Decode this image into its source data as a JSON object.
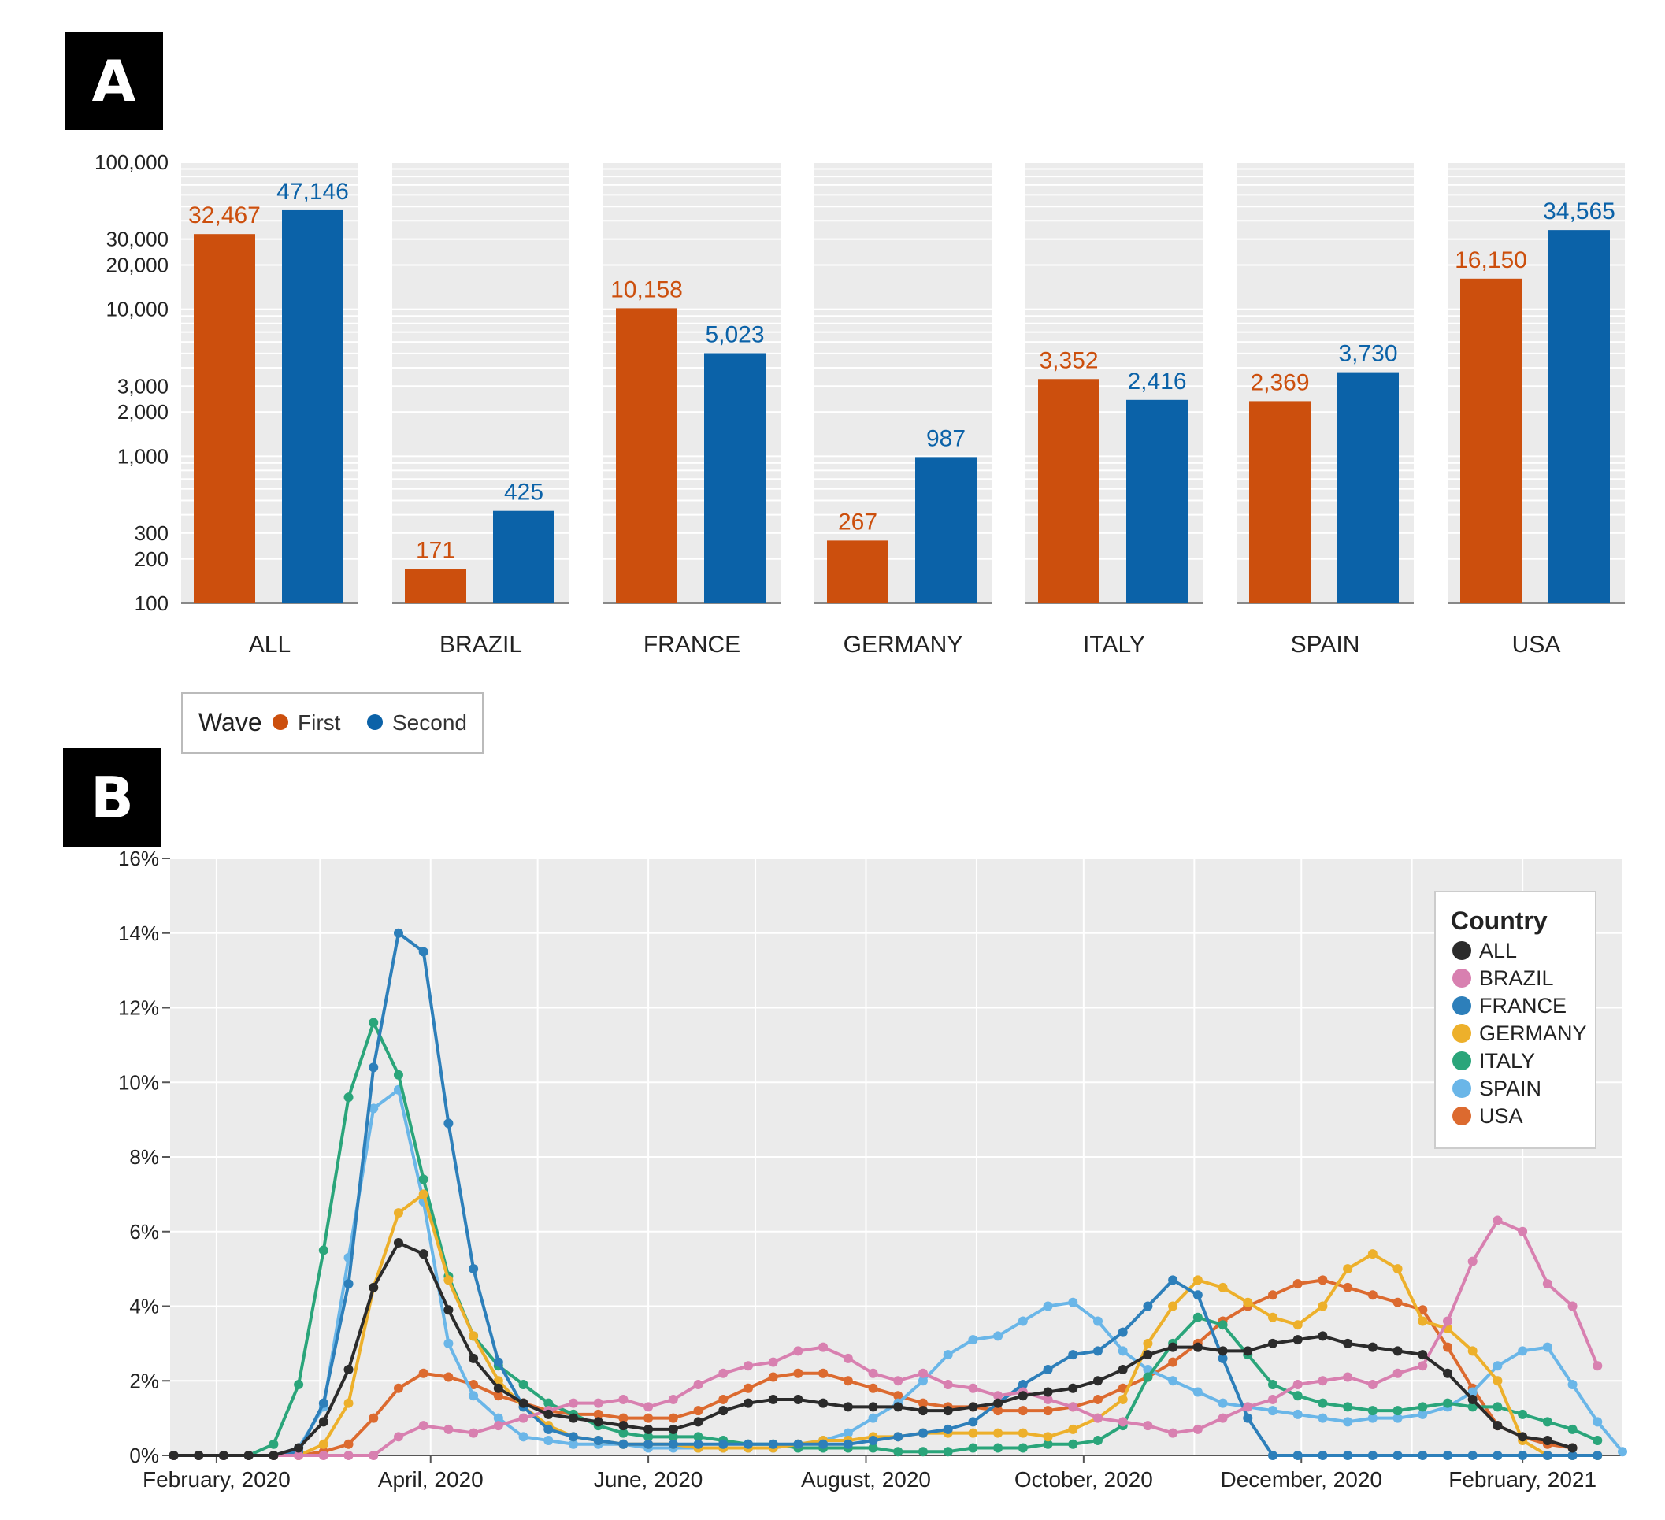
{
  "panels": {
    "a_label": "A",
    "b_label": "B"
  },
  "chart_data": [
    {
      "type": "bar",
      "panel": "A",
      "y_scale": "log",
      "ylim": [
        100,
        100000
      ],
      "yticks": [
        100,
        200,
        300,
        1000,
        2000,
        3000,
        10000,
        20000,
        30000,
        100000
      ],
      "ytick_labels": [
        "100",
        "200",
        "300",
        "1,000",
        "2,000",
        "3,000",
        "10,000",
        "20,000",
        "30,000",
        "100,000"
      ],
      "categories": [
        "ALL",
        "BRAZIL",
        "FRANCE",
        "GERMANY",
        "ITALY",
        "SPAIN",
        "USA"
      ],
      "series": [
        {
          "name": "First",
          "color": "#cc4f0d",
          "values": [
            32467,
            171,
            10158,
            267,
            3352,
            2369,
            16150
          ],
          "labels": [
            "32,467",
            "171",
            "10,158",
            "267",
            "3,352",
            "2,369",
            "16,150"
          ]
        },
        {
          "name": "Second",
          "color": "#0b62a8",
          "values": [
            47146,
            425,
            5023,
            987,
            2416,
            3730,
            34565
          ],
          "labels": [
            "47,146",
            "425",
            "5,023",
            "987",
            "2,416",
            "3,730",
            "34,565"
          ]
        }
      ],
      "legend": {
        "title": "Wave",
        "position": "bottom-left"
      }
    },
    {
      "type": "line",
      "panel": "B",
      "ylim": [
        0,
        16
      ],
      "yticks": [
        0,
        2,
        4,
        6,
        8,
        10,
        12,
        14,
        16
      ],
      "ytick_labels": [
        "0%",
        "2%",
        "4%",
        "6%",
        "8%",
        "10%",
        "12%",
        "14%",
        "16%"
      ],
      "x_start": "2020-01-20",
      "x_step_days": 7,
      "xlim": [
        "2020-01-19",
        "2021-03-01"
      ],
      "xticks": [
        "2020-02-01",
        "2020-04-01",
        "2020-06-01",
        "2020-08-01",
        "2020-10-01",
        "2020-12-01",
        "2021-02-01"
      ],
      "xtick_labels": [
        "February, 2020",
        "April, 2020",
        "June, 2020",
        "August, 2020",
        "October, 2020",
        "December, 2020",
        "February, 2021"
      ],
      "grid": true,
      "legend": {
        "title": "Country",
        "position": "top-right"
      },
      "series": [
        {
          "name": "ALL",
          "color": "#2b2b2b",
          "values": [
            0,
            0,
            0,
            0,
            0,
            0.2,
            0.9,
            2.3,
            4.5,
            5.7,
            5.4,
            3.9,
            2.6,
            1.8,
            1.4,
            1.1,
            1.0,
            0.9,
            0.8,
            0.7,
            0.7,
            0.9,
            1.2,
            1.4,
            1.5,
            1.5,
            1.4,
            1.3,
            1.3,
            1.3,
            1.2,
            1.2,
            1.3,
            1.4,
            1.6,
            1.7,
            1.8,
            2.0,
            2.3,
            2.7,
            2.9,
            2.9,
            2.8,
            2.8,
            3.0,
            3.1,
            3.2,
            3.0,
            2.9,
            2.8,
            2.7,
            2.2,
            1.5,
            0.8,
            0.5,
            0.4,
            0.2
          ]
        },
        {
          "name": "BRAZIL",
          "color": "#d880b0",
          "values": [
            0,
            0,
            0,
            0,
            0,
            0,
            0,
            0,
            0,
            0.5,
            0.8,
            0.7,
            0.6,
            0.8,
            1.0,
            1.2,
            1.4,
            1.4,
            1.5,
            1.3,
            1.5,
            1.9,
            2.2,
            2.4,
            2.5,
            2.8,
            2.9,
            2.6,
            2.2,
            2.0,
            2.2,
            1.9,
            1.8,
            1.6,
            1.7,
            1.5,
            1.3,
            1.0,
            0.9,
            0.8,
            0.6,
            0.7,
            1.0,
            1.3,
            1.5,
            1.9,
            2.0,
            2.1,
            1.9,
            2.2,
            2.4,
            3.6,
            5.2,
            6.3,
            6.0,
            4.6,
            4.0,
            2.4
          ]
        },
        {
          "name": "FRANCE",
          "color": "#2d7fba",
          "values": [
            0,
            0,
            0,
            0,
            0,
            0.1,
            1.4,
            4.6,
            10.4,
            14.0,
            13.5,
            8.9,
            5.0,
            2.5,
            1.3,
            0.7,
            0.5,
            0.4,
            0.3,
            0.3,
            0.3,
            0.3,
            0.3,
            0.3,
            0.3,
            0.3,
            0.3,
            0.3,
            0.4,
            0.5,
            0.6,
            0.7,
            0.9,
            1.4,
            1.9,
            2.3,
            2.7,
            2.8,
            3.3,
            4.0,
            4.7,
            4.3,
            2.6,
            1.0,
            0,
            0,
            0,
            0,
            0,
            0,
            0,
            0,
            0,
            0,
            0,
            0,
            0,
            0
          ]
        },
        {
          "name": "GERMANY",
          "color": "#edb02b",
          "values": [
            0,
            0,
            0,
            0,
            0,
            0,
            0.3,
            1.4,
            4.5,
            6.5,
            7.0,
            4.7,
            3.2,
            2.0,
            1.3,
            0.8,
            0.5,
            0.4,
            0.3,
            0.3,
            0.3,
            0.2,
            0.2,
            0.2,
            0.2,
            0.3,
            0.4,
            0.4,
            0.5,
            0.5,
            0.6,
            0.6,
            0.6,
            0.6,
            0.6,
            0.5,
            0.7,
            1.0,
            1.5,
            3.0,
            4.0,
            4.7,
            4.5,
            4.1,
            3.7,
            3.5,
            4.0,
            5.0,
            5.4,
            5.0,
            3.6,
            3.4,
            2.8,
            2.0,
            0.4,
            0,
            0,
            0
          ]
        },
        {
          "name": "ITALY",
          "color": "#2aa57a",
          "values": [
            0,
            0,
            0,
            0,
            0.3,
            1.9,
            5.5,
            9.6,
            11.6,
            10.2,
            7.4,
            4.8,
            3.2,
            2.4,
            1.9,
            1.4,
            1.1,
            0.8,
            0.6,
            0.5,
            0.5,
            0.5,
            0.4,
            0.3,
            0.3,
            0.2,
            0.2,
            0.2,
            0.2,
            0.1,
            0.1,
            0.1,
            0.2,
            0.2,
            0.2,
            0.3,
            0.3,
            0.4,
            0.8,
            2.1,
            3.0,
            3.7,
            3.5,
            2.7,
            1.9,
            1.6,
            1.4,
            1.3,
            1.2,
            1.2,
            1.3,
            1.4,
            1.3,
            1.3,
            1.1,
            0.9,
            0.7,
            0.4
          ]
        },
        {
          "name": "SPAIN",
          "color": "#6ab6e8",
          "values": [
            0,
            0,
            0,
            0,
            0,
            0.2,
            1.3,
            5.3,
            9.3,
            9.8,
            6.8,
            3.0,
            1.6,
            1.0,
            0.5,
            0.4,
            0.3,
            0.3,
            0.3,
            0.2,
            0.2,
            0.2,
            0.2,
            0.2,
            0.2,
            0.3,
            0.4,
            0.6,
            1.0,
            1.4,
            2.0,
            2.7,
            3.1,
            3.2,
            3.6,
            4.0,
            4.1,
            3.6,
            2.8,
            2.3,
            2.0,
            1.7,
            1.4,
            1.3,
            1.2,
            1.1,
            1.0,
            0.9,
            1.0,
            1.0,
            1.1,
            1.3,
            1.7,
            2.4,
            2.8,
            2.9,
            1.9,
            0.9,
            0.1
          ]
        },
        {
          "name": "USA",
          "color": "#dc6a2f",
          "values": [
            0,
            0,
            0,
            0,
            0,
            0,
            0.1,
            0.3,
            1.0,
            1.8,
            2.2,
            2.1,
            1.9,
            1.6,
            1.4,
            1.2,
            1.1,
            1.1,
            1.0,
            1.0,
            1.0,
            1.2,
            1.5,
            1.8,
            2.1,
            2.2,
            2.2,
            2.0,
            1.8,
            1.6,
            1.4,
            1.3,
            1.3,
            1.2,
            1.2,
            1.2,
            1.3,
            1.5,
            1.8,
            2.1,
            2.5,
            3.0,
            3.6,
            4.0,
            4.3,
            4.6,
            4.7,
            4.5,
            4.3,
            4.1,
            3.9,
            2.9,
            1.8,
            0.8,
            0.5,
            0.3,
            0.2
          ]
        }
      ]
    }
  ]
}
